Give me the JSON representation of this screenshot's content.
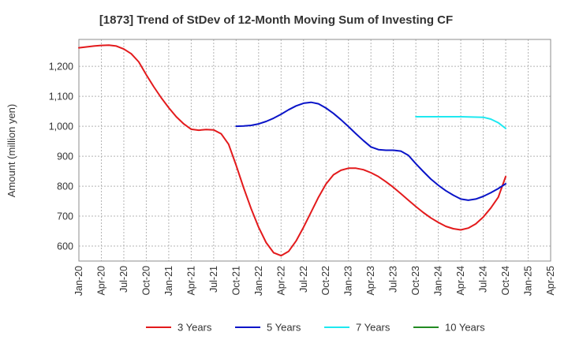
{
  "chart_data": {
    "type": "line",
    "title": "[1873]  Trend of StDev of 12-Month Moving Sum of Investing CF",
    "xlabel": "",
    "ylabel": "Amount (million yen)",
    "ylim": [
      550,
      1290
    ],
    "yticks": [
      600,
      700,
      800,
      900,
      "1,000",
      "1,100",
      "1,200"
    ],
    "ytick_values": [
      600,
      700,
      800,
      900,
      1000,
      1100,
      1200
    ],
    "xlim": [
      "Jan-20",
      "Apr-25"
    ],
    "xticks": [
      "Jan-20",
      "Apr-20",
      "Jul-20",
      "Oct-20",
      "Jan-21",
      "Apr-21",
      "Jul-21",
      "Oct-21",
      "Jan-22",
      "Apr-22",
      "Jul-22",
      "Oct-22",
      "Jan-23",
      "Apr-23",
      "Jul-23",
      "Oct-23",
      "Jan-24",
      "Apr-24",
      "Jul-24",
      "Oct-24",
      "Jan-25",
      "Apr-25"
    ],
    "grid": true,
    "legend_position": "bottom",
    "series": [
      {
        "name": "3 Years",
        "color": "#e31a1c",
        "points": [
          [
            "Jan-20",
            1262
          ],
          [
            "Feb-20",
            1265
          ],
          [
            "Mar-20",
            1268
          ],
          [
            "Apr-20",
            1270
          ],
          [
            "May-20",
            1271
          ],
          [
            "Jun-20",
            1268
          ],
          [
            "Jul-20",
            1258
          ],
          [
            "Aug-20",
            1242
          ],
          [
            "Sep-20",
            1215
          ],
          [
            "Oct-20",
            1172
          ],
          [
            "Nov-20",
            1132
          ],
          [
            "Dec-20",
            1095
          ],
          [
            "Jan-21",
            1062
          ],
          [
            "Feb-21",
            1032
          ],
          [
            "Mar-21",
            1008
          ],
          [
            "Apr-21",
            990
          ],
          [
            "May-21",
            987
          ],
          [
            "Jun-21",
            989
          ],
          [
            "Jul-21",
            988
          ],
          [
            "Aug-21",
            975
          ],
          [
            "Sep-21",
            940
          ],
          [
            "Oct-21",
            870
          ],
          [
            "Nov-21",
            795
          ],
          [
            "Dec-21",
            725
          ],
          [
            "Jan-22",
            663
          ],
          [
            "Feb-22",
            612
          ],
          [
            "Mar-22",
            578
          ],
          [
            "Apr-22",
            568
          ],
          [
            "May-22",
            582
          ],
          [
            "Jun-22",
            617
          ],
          [
            "Jul-22",
            663
          ],
          [
            "Aug-22",
            713
          ],
          [
            "Sep-22",
            763
          ],
          [
            "Oct-22",
            807
          ],
          [
            "Nov-22",
            838
          ],
          [
            "Dec-22",
            853
          ],
          [
            "Jan-23",
            860
          ],
          [
            "Feb-23",
            860
          ],
          [
            "Mar-23",
            855
          ],
          [
            "Apr-23",
            845
          ],
          [
            "May-23",
            832
          ],
          [
            "Jun-23",
            815
          ],
          [
            "Jul-23",
            796
          ],
          [
            "Aug-23",
            775
          ],
          [
            "Sep-23",
            753
          ],
          [
            "Oct-23",
            732
          ],
          [
            "Nov-23",
            712
          ],
          [
            "Dec-23",
            694
          ],
          [
            "Jan-24",
            679
          ],
          [
            "Feb-24",
            666
          ],
          [
            "Mar-24",
            658
          ],
          [
            "Apr-24",
            654
          ],
          [
            "May-24",
            660
          ],
          [
            "Jun-24",
            674
          ],
          [
            "Jul-24",
            697
          ],
          [
            "Aug-24",
            727
          ],
          [
            "Sep-24",
            763
          ],
          [
            "Oct-24",
            832
          ]
        ]
      },
      {
        "name": "5 Years",
        "color": "#0a14c8",
        "points": [
          [
            "Oct-21",
            1000
          ],
          [
            "Nov-21",
            1001
          ],
          [
            "Dec-21",
            1003
          ],
          [
            "Jan-22",
            1008
          ],
          [
            "Feb-22",
            1016
          ],
          [
            "Mar-22",
            1027
          ],
          [
            "Apr-22",
            1040
          ],
          [
            "May-22",
            1055
          ],
          [
            "Jun-22",
            1068
          ],
          [
            "Jul-22",
            1077
          ],
          [
            "Aug-22",
            1080
          ],
          [
            "Sep-22",
            1075
          ],
          [
            "Oct-22",
            1061
          ],
          [
            "Nov-22",
            1043
          ],
          [
            "Dec-22",
            1022
          ],
          [
            "Jan-23",
            999
          ],
          [
            "Feb-23",
            975
          ],
          [
            "Mar-23",
            952
          ],
          [
            "Apr-23",
            931
          ],
          [
            "May-23",
            922
          ],
          [
            "Jun-23",
            920
          ],
          [
            "Jul-23",
            920
          ],
          [
            "Aug-23",
            917
          ],
          [
            "Sep-23",
            903
          ],
          [
            "Oct-23",
            875
          ],
          [
            "Nov-23",
            849
          ],
          [
            "Dec-23",
            824
          ],
          [
            "Jan-24",
            803
          ],
          [
            "Feb-24",
            785
          ],
          [
            "Mar-24",
            770
          ],
          [
            "Apr-24",
            757
          ],
          [
            "May-24",
            753
          ],
          [
            "Jun-24",
            757
          ],
          [
            "Jul-24",
            766
          ],
          [
            "Aug-24",
            778
          ],
          [
            "Sep-24",
            792
          ],
          [
            "Oct-24",
            808
          ]
        ]
      },
      {
        "name": "7 Years",
        "color": "#1ee8f0",
        "points": [
          [
            "Oct-23",
            1032
          ],
          [
            "Jan-24",
            1032
          ],
          [
            "Apr-24",
            1032
          ],
          [
            "Jul-24",
            1030
          ],
          [
            "Aug-24",
            1024
          ],
          [
            "Sep-24",
            1012
          ],
          [
            "Oct-24",
            993
          ]
        ]
      },
      {
        "name": "10 Years",
        "color": "#228b22",
        "points": []
      }
    ]
  }
}
